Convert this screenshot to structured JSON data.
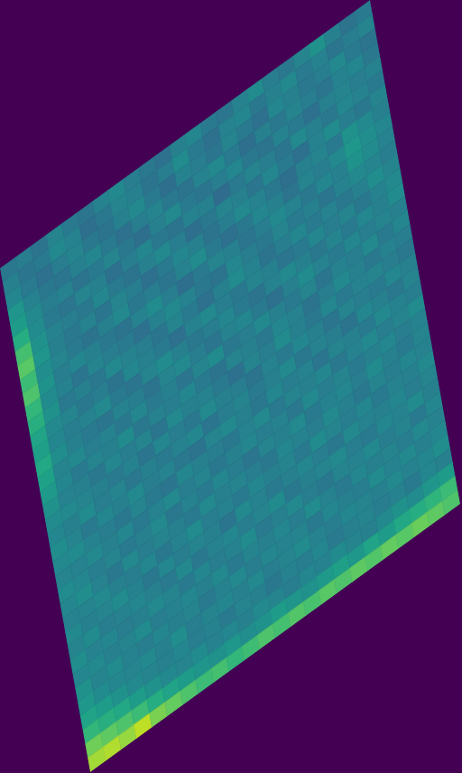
{
  "chart_data": {
    "type": "heatmap",
    "color": "viridis",
    "zlim": [
      0,
      1
    ],
    "tick_labels": false,
    "values": [
      [
        0.4,
        0.42,
        0.38,
        0.45,
        0.41,
        0.39,
        0.44,
        0.47,
        0.42,
        0.4,
        0.37,
        0.43,
        0.46,
        0.41,
        0.39,
        0.44,
        0.48,
        0.42,
        0.4,
        0.45,
        0.5,
        0.43,
        0.38,
        0.41
      ],
      [
        0.43,
        0.39,
        0.41,
        0.47,
        0.44,
        0.36,
        0.4,
        0.45,
        0.43,
        0.38,
        0.42,
        0.48,
        0.41,
        0.37,
        0.44,
        0.46,
        0.4,
        0.43,
        0.47,
        0.41,
        0.44,
        0.39,
        0.42,
        0.45
      ],
      [
        0.46,
        0.41,
        0.37,
        0.42,
        0.45,
        0.4,
        0.38,
        0.43,
        0.47,
        0.41,
        0.36,
        0.44,
        0.42,
        0.39,
        0.45,
        0.41,
        0.37,
        0.46,
        0.43,
        0.4,
        0.42,
        0.47,
        0.41,
        0.38
      ],
      [
        0.52,
        0.44,
        0.4,
        0.39,
        0.43,
        0.46,
        0.41,
        0.37,
        0.42,
        0.45,
        0.4,
        0.38,
        0.44,
        0.47,
        0.41,
        0.36,
        0.43,
        0.4,
        0.45,
        0.42,
        0.39,
        0.44,
        0.46,
        0.4
      ],
      [
        0.55,
        0.47,
        0.42,
        0.44,
        0.38,
        0.41,
        0.45,
        0.4,
        0.36,
        0.43,
        0.47,
        0.41,
        0.39,
        0.42,
        0.46,
        0.4,
        0.38,
        0.44,
        0.41,
        0.37,
        0.43,
        0.45,
        0.42,
        0.44
      ],
      [
        0.62,
        0.48,
        0.41,
        0.39,
        0.45,
        0.43,
        0.37,
        0.42,
        0.46,
        0.4,
        0.38,
        0.44,
        0.43,
        0.35,
        0.41,
        0.45,
        0.42,
        0.39,
        0.47,
        0.43,
        0.4,
        0.46,
        0.44,
        0.41
      ],
      [
        0.7,
        0.5,
        0.44,
        0.42,
        0.4,
        0.46,
        0.41,
        0.38,
        0.43,
        0.47,
        0.42,
        0.36,
        0.4,
        0.45,
        0.43,
        0.39,
        0.46,
        0.41,
        0.37,
        0.44,
        0.48,
        0.42,
        0.4,
        0.45
      ],
      [
        0.74,
        0.52,
        0.43,
        0.4,
        0.44,
        0.39,
        0.45,
        0.42,
        0.37,
        0.41,
        0.46,
        0.43,
        0.38,
        0.42,
        0.47,
        0.44,
        0.4,
        0.36,
        0.43,
        0.45,
        0.41,
        0.5,
        0.47,
        0.43
      ],
      [
        0.68,
        0.49,
        0.45,
        0.41,
        0.38,
        0.43,
        0.47,
        0.4,
        0.42,
        0.39,
        0.44,
        0.48,
        0.41,
        0.37,
        0.4,
        0.46,
        0.43,
        0.38,
        0.45,
        0.42,
        0.47,
        0.53,
        0.49,
        0.46
      ],
      [
        0.72,
        0.51,
        0.42,
        0.46,
        0.43,
        0.4,
        0.38,
        0.44,
        0.48,
        0.42,
        0.36,
        0.41,
        0.45,
        0.43,
        0.39,
        0.42,
        0.47,
        0.44,
        0.4,
        0.46,
        0.43,
        0.51,
        0.48,
        0.44
      ],
      [
        0.66,
        0.48,
        0.44,
        0.39,
        0.45,
        0.42,
        0.41,
        0.37,
        0.43,
        0.47,
        0.44,
        0.4,
        0.38,
        0.46,
        0.42,
        0.4,
        0.45,
        0.41,
        0.43,
        0.39,
        0.44,
        0.47,
        0.45,
        0.42
      ],
      [
        0.63,
        0.5,
        0.41,
        0.43,
        0.4,
        0.47,
        0.44,
        0.42,
        0.39,
        0.45,
        0.41,
        0.37,
        0.43,
        0.48,
        0.44,
        0.38,
        0.42,
        0.46,
        0.41,
        0.44,
        0.4,
        0.43,
        0.49,
        0.45
      ],
      [
        0.58,
        0.47,
        0.45,
        0.4,
        0.42,
        0.38,
        0.46,
        0.43,
        0.41,
        0.37,
        0.44,
        0.47,
        0.42,
        0.4,
        0.45,
        0.43,
        0.39,
        0.41,
        0.46,
        0.42,
        0.45,
        0.4,
        0.44,
        0.47
      ],
      [
        0.56,
        0.46,
        0.42,
        0.44,
        0.47,
        0.41,
        0.39,
        0.45,
        0.48,
        0.43,
        0.4,
        0.42,
        0.46,
        0.41,
        0.38,
        0.44,
        0.47,
        0.43,
        0.4,
        0.45,
        0.41,
        0.46,
        0.43,
        0.48
      ],
      [
        0.6,
        0.49,
        0.43,
        0.41,
        0.39,
        0.44,
        0.42,
        0.38,
        0.45,
        0.47,
        0.42,
        0.39,
        0.44,
        0.46,
        0.41,
        0.37,
        0.43,
        0.48,
        0.44,
        0.41,
        0.46,
        0.42,
        0.45,
        0.43
      ],
      [
        0.57,
        0.45,
        0.47,
        0.42,
        0.44,
        0.4,
        0.46,
        0.41,
        0.43,
        0.39,
        0.45,
        0.48,
        0.4,
        0.42,
        0.47,
        0.43,
        0.41,
        0.45,
        0.39,
        0.44,
        0.42,
        0.47,
        0.41,
        0.46
      ],
      [
        0.54,
        0.46,
        0.41,
        0.45,
        0.43,
        0.48,
        0.4,
        0.44,
        0.42,
        0.46,
        0.41,
        0.38,
        0.45,
        0.43,
        0.4,
        0.46,
        0.44,
        0.38,
        0.42,
        0.47,
        0.43,
        0.4,
        0.44,
        0.42
      ],
      [
        0.5,
        0.44,
        0.43,
        0.4,
        0.46,
        0.42,
        0.45,
        0.39,
        0.47,
        0.43,
        0.44,
        0.41,
        0.37,
        0.45,
        0.42,
        0.48,
        0.43,
        0.4,
        0.46,
        0.41,
        0.44,
        0.45,
        0.42,
        0.4
      ],
      [
        0.48,
        0.47,
        0.45,
        0.43,
        0.41,
        0.44,
        0.39,
        0.46,
        0.42,
        0.4,
        0.47,
        0.43,
        0.42,
        0.38,
        0.44,
        0.41,
        0.46,
        0.43,
        0.39,
        0.45,
        0.42,
        0.41,
        0.46,
        0.43
      ],
      [
        0.46,
        0.43,
        0.48,
        0.42,
        0.45,
        0.4,
        0.43,
        0.41,
        0.44,
        0.46,
        0.39,
        0.42,
        0.45,
        0.41,
        0.43,
        0.47,
        0.4,
        0.44,
        0.42,
        0.38,
        0.46,
        0.43,
        0.4,
        0.45
      ],
      [
        0.49,
        0.45,
        0.41,
        0.46,
        0.43,
        0.47,
        0.42,
        0.44,
        0.4,
        0.38,
        0.45,
        0.47,
        0.43,
        0.4,
        0.46,
        0.42,
        0.44,
        0.39,
        0.45,
        0.43,
        0.41,
        0.47,
        0.44,
        0.42
      ],
      [
        0.47,
        0.48,
        0.44,
        0.42,
        0.4,
        0.45,
        0.41,
        0.39,
        0.46,
        0.43,
        0.42,
        0.4,
        0.44,
        0.47,
        0.41,
        0.45,
        0.43,
        0.46,
        0.4,
        0.44,
        0.47,
        0.42,
        0.45,
        0.48
      ],
      [
        0.45,
        0.44,
        0.47,
        0.43,
        0.46,
        0.41,
        0.44,
        0.47,
        0.42,
        0.45,
        0.4,
        0.43,
        0.46,
        0.42,
        0.44,
        0.4,
        0.47,
        0.42,
        0.45,
        0.41,
        0.43,
        0.46,
        0.42,
        0.44
      ],
      [
        0.48,
        0.46,
        0.42,
        0.45,
        0.41,
        0.43,
        0.47,
        0.4,
        0.44,
        0.41,
        0.46,
        0.42,
        0.39,
        0.45,
        0.43,
        0.47,
        0.41,
        0.44,
        0.46,
        0.42,
        0.48,
        0.43,
        0.41,
        0.45
      ],
      [
        0.46,
        0.49,
        0.44,
        0.4,
        0.47,
        0.42,
        0.45,
        0.43,
        0.41,
        0.47,
        0.43,
        0.45,
        0.42,
        0.4,
        0.46,
        0.44,
        0.42,
        0.47,
        0.43,
        0.4,
        0.45,
        0.42,
        0.46,
        0.44
      ],
      [
        0.44,
        0.45,
        0.47,
        0.43,
        0.42,
        0.46,
        0.4,
        0.44,
        0.48,
        0.42,
        0.44,
        0.41,
        0.46,
        0.43,
        0.45,
        0.41,
        0.48,
        0.45,
        0.42,
        0.46,
        0.41,
        0.44,
        0.43,
        0.47
      ],
      [
        0.47,
        0.43,
        0.45,
        0.48,
        0.44,
        0.4,
        0.46,
        0.42,
        0.45,
        0.43,
        0.39,
        0.47,
        0.44,
        0.41,
        0.43,
        0.46,
        0.42,
        0.4,
        0.47,
        0.44,
        0.43,
        0.46,
        0.42,
        0.45
      ],
      [
        0.45,
        0.48,
        0.42,
        0.44,
        0.46,
        0.43,
        0.41,
        0.47,
        0.4,
        0.44,
        0.46,
        0.42,
        0.45,
        0.48,
        0.4,
        0.43,
        0.45,
        0.47,
        0.42,
        0.41,
        0.46,
        0.44,
        0.48,
        0.43
      ],
      [
        0.49,
        0.44,
        0.46,
        0.42,
        0.43,
        0.47,
        0.45,
        0.41,
        0.46,
        0.42,
        0.44,
        0.48,
        0.41,
        0.43,
        0.47,
        0.42,
        0.4,
        0.45,
        0.44,
        0.47,
        0.42,
        0.45,
        0.41,
        0.46
      ],
      [
        0.46,
        0.47,
        0.43,
        0.45,
        0.48,
        0.42,
        0.44,
        0.46,
        0.43,
        0.47,
        0.41,
        0.45,
        0.43,
        0.46,
        0.42,
        0.48,
        0.44,
        0.41,
        0.46,
        0.43,
        0.45,
        0.42,
        0.47,
        0.44
      ],
      [
        0.5,
        0.45,
        0.48,
        0.44,
        0.42,
        0.46,
        0.43,
        0.45,
        0.41,
        0.44,
        0.47,
        0.42,
        0.46,
        0.44,
        0.45,
        0.41,
        0.46,
        0.43,
        0.42,
        0.48,
        0.44,
        0.47,
        0.43,
        0.46
      ],
      [
        0.53,
        0.48,
        0.46,
        0.45,
        0.47,
        0.43,
        0.49,
        0.42,
        0.45,
        0.46,
        0.43,
        0.47,
        0.42,
        0.45,
        0.48,
        0.44,
        0.42,
        0.46,
        0.45,
        0.43,
        0.47,
        0.44,
        0.46,
        0.49
      ],
      [
        0.58,
        0.55,
        0.5,
        0.47,
        0.45,
        0.43,
        0.46,
        0.42,
        0.44,
        0.41,
        0.45,
        0.43,
        0.4,
        0.44,
        0.42,
        0.46,
        0.41,
        0.43,
        0.45,
        0.42,
        0.44,
        0.41,
        0.46,
        0.43
      ],
      [
        0.66,
        0.63,
        0.6,
        0.55,
        0.5,
        0.47,
        0.45,
        0.48,
        0.44,
        0.46,
        0.43,
        0.47,
        0.45,
        0.42,
        0.46,
        0.44,
        0.48,
        0.45,
        0.43,
        0.47,
        0.5,
        0.48,
        0.52,
        0.55
      ],
      [
        0.78,
        0.75,
        0.72,
        0.68,
        0.62,
        0.58,
        0.55,
        0.52,
        0.5,
        0.53,
        0.49,
        0.51,
        0.55,
        0.52,
        0.5,
        0.54,
        0.56,
        0.53,
        0.58,
        0.55,
        0.6,
        0.62,
        0.65,
        0.68
      ],
      [
        0.86,
        0.88,
        0.84,
        0.9,
        0.8,
        0.76,
        0.72,
        0.68,
        0.7,
        0.66,
        0.69,
        0.72,
        0.7,
        0.73,
        0.71,
        0.74,
        0.72,
        0.75,
        0.73,
        0.76,
        0.74,
        0.77,
        0.75,
        0.72
      ]
    ]
  }
}
